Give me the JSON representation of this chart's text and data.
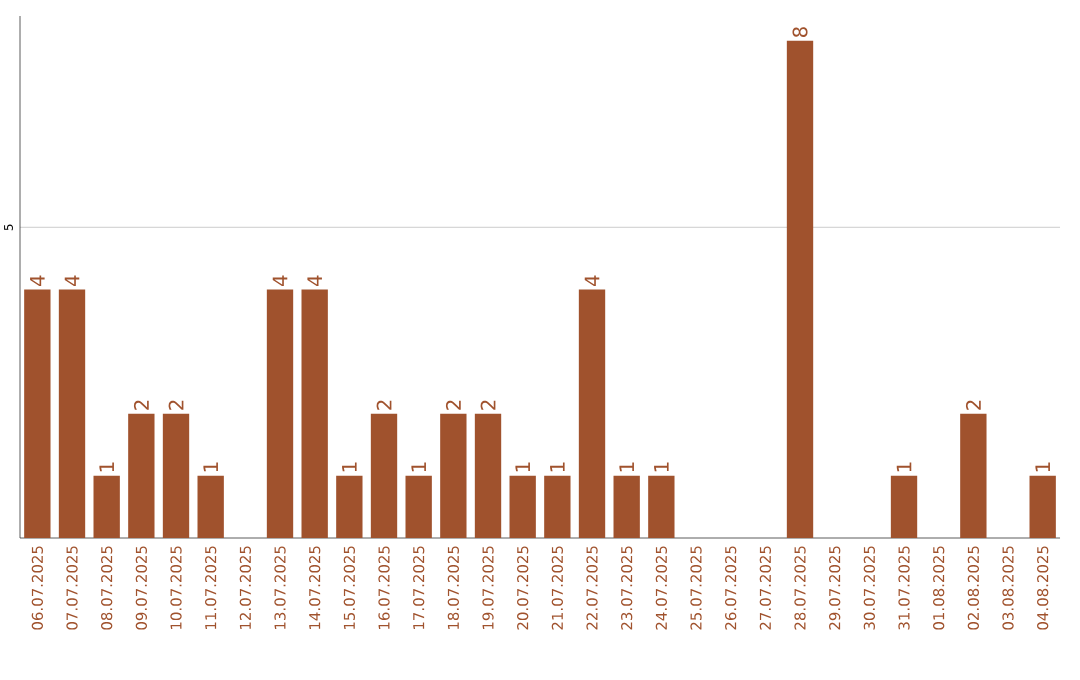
{
  "chart_data": {
    "type": "bar",
    "categories": [
      "06.07.2025",
      "07.07.2025",
      "08.07.2025",
      "09.07.2025",
      "10.07.2025",
      "11.07.2025",
      "12.07.2025",
      "13.07.2025",
      "14.07.2025",
      "15.07.2025",
      "16.07.2025",
      "17.07.2025",
      "18.07.2025",
      "19.07.2025",
      "20.07.2025",
      "21.07.2025",
      "22.07.2025",
      "23.07.2025",
      "24.07.2025",
      "25.07.2025",
      "26.07.2025",
      "27.07.2025",
      "28.07.2025",
      "29.07.2025",
      "30.07.2025",
      "31.07.2025",
      "01.08.2025",
      "02.08.2025",
      "03.08.2025",
      "04.08.2025"
    ],
    "values": [
      4,
      4,
      1,
      2,
      2,
      1,
      0,
      4,
      4,
      1,
      2,
      1,
      2,
      2,
      1,
      1,
      4,
      1,
      1,
      0,
      0,
      0,
      8,
      0,
      0,
      1,
      0,
      2,
      0,
      1
    ],
    "value_labels": [
      "4",
      "4",
      "1",
      "2",
      "2",
      "1",
      null,
      "4",
      "4",
      "1",
      "2",
      "1",
      "2",
      "2",
      "1",
      "1",
      "4",
      "1",
      "1",
      null,
      null,
      null,
      "8",
      null,
      null,
      "1",
      null,
      "2",
      null,
      "1"
    ],
    "color": "#a0522d",
    "ylim": [
      0,
      8.4
    ],
    "yticks": [
      5
    ],
    "grid": "y"
  }
}
